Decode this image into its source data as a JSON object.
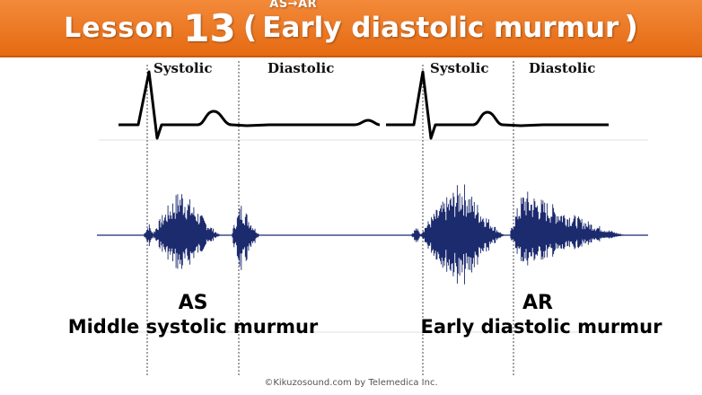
{
  "title": {
    "lesson": "Lesson",
    "number": "13",
    "open_paren": "(",
    "topic": "Early diastolic murmur",
    "close_paren": ")",
    "sub": "AS→AR"
  },
  "phases": {
    "left_systolic": "Systolic",
    "left_diastolic": "Diastolic",
    "right_systolic": "Systolic",
    "right_diastolic": "Diastolic"
  },
  "left": {
    "code": "AS",
    "name": "Middle systolic murmur"
  },
  "right": {
    "code": "AR",
    "name": "Early diastolic murmur"
  },
  "copyright": "©Kikuzosound.com by Telemedica Inc.",
  "colors": {
    "banner": "#ee7a26",
    "waveform": "#1c2a6e",
    "ecg": "#000000"
  }
}
